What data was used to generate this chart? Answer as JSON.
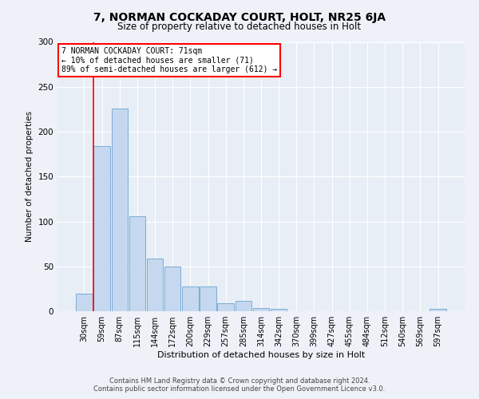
{
  "title1": "7, NORMAN COCKADAY COURT, HOLT, NR25 6JA",
  "title2": "Size of property relative to detached houses in Holt",
  "xlabel": "Distribution of detached houses by size in Holt",
  "ylabel": "Number of detached properties",
  "categories": [
    "30sqm",
    "59sqm",
    "87sqm",
    "115sqm",
    "144sqm",
    "172sqm",
    "200sqm",
    "229sqm",
    "257sqm",
    "285sqm",
    "314sqm",
    "342sqm",
    "370sqm",
    "399sqm",
    "427sqm",
    "455sqm",
    "484sqm",
    "512sqm",
    "540sqm",
    "569sqm",
    "597sqm"
  ],
  "values": [
    20,
    184,
    226,
    106,
    59,
    50,
    28,
    28,
    9,
    12,
    4,
    3,
    0,
    0,
    0,
    0,
    0,
    0,
    0,
    0,
    3
  ],
  "bar_color": "#c5d8ef",
  "bar_edge_color": "#7aadd4",
  "vline_x_index": 1,
  "vline_color": "red",
  "annotation_title": "7 NORMAN COCKADAY COURT: 71sqm",
  "annotation_line2": "← 10% of detached houses are smaller (71)",
  "annotation_line3": "89% of semi-detached houses are larger (612) →",
  "annotation_box_color": "white",
  "annotation_box_edge_color": "red",
  "ylim": [
    0,
    300
  ],
  "yticks": [
    0,
    50,
    100,
    150,
    200,
    250,
    300
  ],
  "footer1": "Contains HM Land Registry data © Crown copyright and database right 2024.",
  "footer2": "Contains public sector information licensed under the Open Government Licence v3.0.",
  "bg_color": "#eef2f8",
  "plot_bg_color": "#e8eef6",
  "grid_color": "#ffffff",
  "title1_fontsize": 10,
  "title2_fontsize": 8.5,
  "ylabel_fontsize": 7.5,
  "xlabel_fontsize": 8,
  "tick_fontsize": 7,
  "annotation_fontsize": 7,
  "footer_fontsize": 6
}
